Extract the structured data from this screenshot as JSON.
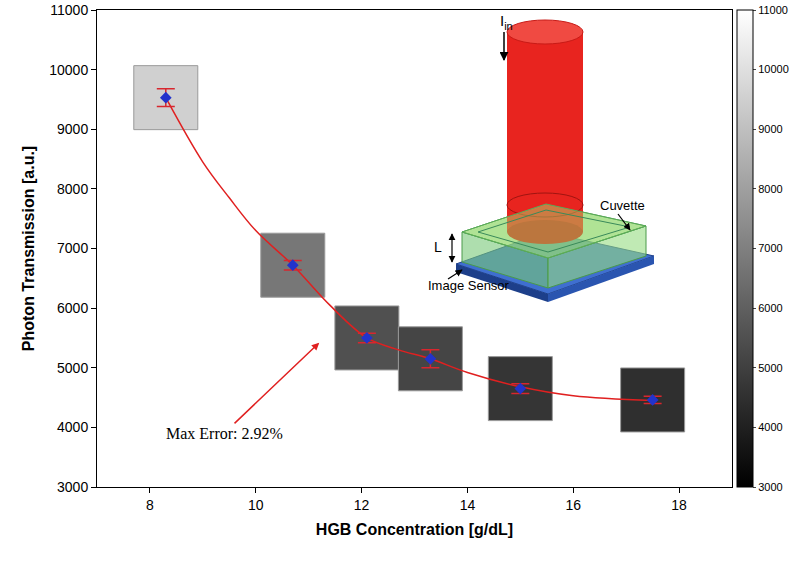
{
  "chart_data": {
    "type": "scatter",
    "x_label": "HGB Concentration [g/dL]",
    "y_label": "Photon Transmission [a.u.]",
    "x": [
      8.3,
      10.7,
      12.1,
      13.3,
      15.0,
      17.5
    ],
    "values": [
      9530,
      6720,
      5500,
      5150,
      4650,
      4460
    ],
    "error": [
      150,
      80,
      80,
      150,
      80,
      60
    ],
    "color": "#2233cc",
    "marker": "diamond",
    "fit": {
      "type": "line",
      "x": [
        8.3,
        9.0,
        9.5,
        10.0,
        10.7,
        11.4,
        12.1,
        12.7,
        13.3,
        14.0,
        15.0,
        16.0,
        17.5
      ],
      "values": [
        9530,
        8450,
        7850,
        7300,
        6720,
        6050,
        5500,
        5300,
        5150,
        4920,
        4680,
        4530,
        4450
      ],
      "color": "#e02020",
      "line_style": "solid"
    },
    "colorbar": {
      "range": [
        3000,
        11000
      ],
      "ticks": [
        3000,
        4000,
        5000,
        6000,
        7000,
        8000,
        9000,
        10000,
        11000
      ]
    },
    "xlim": [
      7,
      19
    ],
    "xticks": [
      8,
      10,
      12,
      14,
      16,
      18
    ],
    "ylim": [
      3000,
      11000
    ],
    "yticks": [
      3000,
      4000,
      5000,
      6000,
      7000,
      8000,
      9000,
      10000,
      11000
    ],
    "grid": false,
    "annotations": [
      {
        "text": "Max Error: 2.92%",
        "x": 11.2,
        "y": 5420,
        "text_x": 9.4,
        "text_y": 3900
      }
    ],
    "inset": {
      "beam_label": "I",
      "beam_label_sub": "in",
      "cuvette_label": "Cuvette",
      "thickness_label": "L",
      "sensor_label": "Image Sensor"
    }
  }
}
